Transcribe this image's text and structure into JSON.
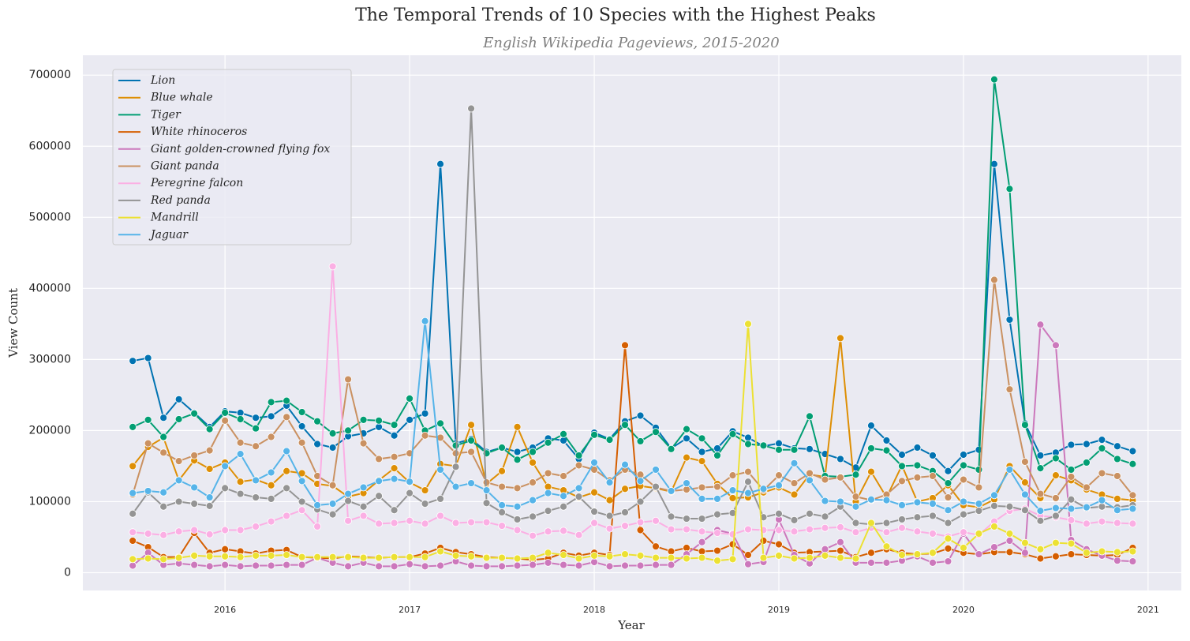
{
  "chart_data": {
    "type": "line",
    "title": "The Temporal Trends of 10 Species with the Highest Peaks",
    "subtitle": "English Wikipedia Pageviews, 2015-2020",
    "x_label": "Year",
    "y_label": "View Count",
    "x": [
      "2015-07",
      "2015-08",
      "2015-09",
      "2015-10",
      "2015-11",
      "2015-12",
      "2016-01",
      "2016-02",
      "2016-03",
      "2016-04",
      "2016-05",
      "2016-06",
      "2016-07",
      "2016-08",
      "2016-09",
      "2016-10",
      "2016-11",
      "2016-12",
      "2017-01",
      "2017-02",
      "2017-03",
      "2017-04",
      "2017-05",
      "2017-06",
      "2017-07",
      "2017-08",
      "2017-09",
      "2017-10",
      "2017-11",
      "2017-12",
      "2018-01",
      "2018-02",
      "2018-03",
      "2018-04",
      "2018-05",
      "2018-06",
      "2018-07",
      "2018-08",
      "2018-09",
      "2018-10",
      "2018-11",
      "2018-12",
      "2019-01",
      "2019-02",
      "2019-03",
      "2019-04",
      "2019-05",
      "2019-06",
      "2019-07",
      "2019-08",
      "2019-09",
      "2019-10",
      "2019-11",
      "2019-12",
      "2020-01",
      "2020-02",
      "2020-03",
      "2020-04",
      "2020-05",
      "2020-06",
      "2020-07",
      "2020-08",
      "2020-09",
      "2020-10",
      "2020-11",
      "2020-12"
    ],
    "xlim": [
      2015.23,
      2021.18
    ],
    "xticks": [
      2016,
      2017,
      2018,
      2019,
      2020,
      2021
    ],
    "ylim": [
      -25000,
      728000
    ],
    "yticks": [
      0,
      100000,
      200000,
      300000,
      400000,
      500000,
      600000,
      700000
    ],
    "grid": true,
    "legend": "upper left",
    "series": [
      {
        "name": "Lion",
        "color": "#0173b2",
        "values": [
          298000,
          302000,
          218000,
          244000,
          225000,
          205000,
          227000,
          225000,
          218000,
          220000,
          235000,
          206000,
          181000,
          176000,
          192000,
          196000,
          205000,
          193000,
          215000,
          224000,
          575000,
          182000,
          188000,
          170000,
          176000,
          170000,
          176000,
          189000,
          186000,
          160000,
          197000,
          188000,
          213000,
          221000,
          204000,
          175000,
          189000,
          170000,
          175000,
          199000,
          190000,
          178000,
          182000,
          175000,
          174000,
          167000,
          160000,
          148000,
          207000,
          186000,
          166000,
          176000,
          165000,
          143000,
          166000,
          173000,
          575000,
          356000,
          210000,
          165000,
          169000,
          180000,
          181000,
          187000,
          178000,
          171000
        ]
      },
      {
        "name": "Blue whale",
        "color": "#de8f05",
        "values": [
          150000,
          177000,
          190000,
          130000,
          158000,
          146000,
          155000,
          128000,
          131000,
          123000,
          143000,
          140000,
          125000,
          122000,
          107000,
          112000,
          130000,
          147000,
          127000,
          116000,
          153000,
          150000,
          208000,
          125000,
          143000,
          205000,
          155000,
          121000,
          116000,
          106000,
          113000,
          102000,
          118000,
          122000,
          119000,
          114000,
          162000,
          157000,
          125000,
          105000,
          106000,
          113000,
          120000,
          110000,
          138000,
          135000,
          330000,
          100000,
          142000,
          106000,
          151000,
          100000,
          105000,
          123000,
          95000,
          92000,
          103000,
          150000,
          127000,
          105000,
          137000,
          130000,
          117000,
          110000,
          104000,
          102000
        ]
      },
      {
        "name": "Tiger",
        "color": "#029e73",
        "values": [
          205000,
          215000,
          191000,
          216000,
          224000,
          202000,
          225000,
          216000,
          203000,
          240000,
          242000,
          226000,
          213000,
          196000,
          200000,
          215000,
          214000,
          208000,
          245000,
          200000,
          210000,
          179000,
          186000,
          168000,
          176000,
          159000,
          170000,
          183000,
          195000,
          165000,
          194000,
          187000,
          208000,
          185000,
          198000,
          174000,
          202000,
          189000,
          165000,
          195000,
          181000,
          179000,
          173000,
          173000,
          220000,
          136000,
          135000,
          138000,
          175000,
          172000,
          150000,
          151000,
          143000,
          126000,
          151000,
          145000,
          694000,
          540000,
          208000,
          147000,
          161000,
          145000,
          155000,
          175000,
          160000,
          153000
        ]
      },
      {
        "name": "White rhinoceros",
        "color": "#d55e00",
        "values": [
          45000,
          36000,
          22000,
          22000,
          56000,
          28000,
          33000,
          30000,
          27000,
          31000,
          32000,
          22000,
          21000,
          20000,
          23000,
          22000,
          21000,
          22000,
          22000,
          27000,
          35000,
          29000,
          26000,
          22000,
          21000,
          20000,
          18000,
          20000,
          28000,
          24000,
          28000,
          25000,
          320000,
          60000,
          37000,
          30000,
          35000,
          30000,
          31000,
          40000,
          25000,
          45000,
          40000,
          28000,
          29000,
          30000,
          31000,
          22000,
          28000,
          33000,
          28000,
          26000,
          27000,
          34000,
          28000,
          26000,
          29000,
          29000,
          26000,
          20000,
          23000,
          26000,
          25000,
          24000,
          25000,
          35000
        ]
      },
      {
        "name": "Giant golden-crowned flying fox",
        "color": "#cc78bc",
        "values": [
          10000,
          28000,
          11000,
          13000,
          11000,
          9000,
          11000,
          9000,
          10000,
          10000,
          11000,
          11000,
          21000,
          14000,
          9000,
          14000,
          9000,
          9000,
          12000,
          9000,
          10000,
          16000,
          10000,
          9000,
          9000,
          10000,
          11000,
          14000,
          11000,
          10000,
          15000,
          9000,
          10000,
          10000,
          11000,
          11000,
          26000,
          43000,
          60000,
          55000,
          12000,
          15000,
          75000,
          25000,
          13000,
          33000,
          43000,
          14000,
          14000,
          14000,
          17000,
          23000,
          14000,
          16000,
          55000,
          26000,
          36000,
          45000,
          28000,
          349000,
          320000,
          46000,
          33000,
          24000,
          17000,
          16000
        ]
      },
      {
        "name": "Giant panda",
        "color": "#ca9161",
        "values": [
          110000,
          182000,
          169000,
          157000,
          165000,
          172000,
          214000,
          183000,
          178000,
          191000,
          219000,
          183000,
          136000,
          123000,
          272000,
          182000,
          160000,
          163000,
          168000,
          193000,
          190000,
          168000,
          170000,
          127000,
          121000,
          119000,
          127000,
          140000,
          136000,
          151000,
          145000,
          130000,
          145000,
          138000,
          120000,
          115000,
          117000,
          120000,
          121000,
          137000,
          142000,
          116000,
          137000,
          126000,
          140000,
          131000,
          134000,
          107000,
          102000,
          110000,
          129000,
          134000,
          136000,
          106000,
          131000,
          120000,
          412000,
          258000,
          156000,
          111000,
          105000,
          135000,
          120000,
          140000,
          136000,
          109000
        ]
      },
      {
        "name": "Peregrine falcon",
        "color": "#fbafe4",
        "values": [
          57000,
          55000,
          53000,
          58000,
          60000,
          54000,
          60000,
          60000,
          65000,
          72000,
          80000,
          88000,
          65000,
          431000,
          73000,
          80000,
          69000,
          70000,
          73000,
          69000,
          80000,
          70000,
          71000,
          71000,
          66000,
          60000,
          52000,
          58000,
          59000,
          53000,
          70000,
          62000,
          66000,
          71000,
          73000,
          61000,
          61000,
          58000,
          56000,
          54000,
          61000,
          60000,
          60000,
          58000,
          61000,
          63000,
          64000,
          57000,
          63000,
          57000,
          63000,
          58000,
          55000,
          51000,
          57000,
          53000,
          72000,
          87000,
          90000,
          80000,
          78000,
          74000,
          69000,
          72000,
          70000,
          69000
        ]
      },
      {
        "name": "Red panda",
        "color": "#949494",
        "values": [
          83000,
          113000,
          93000,
          100000,
          97000,
          94000,
          119000,
          111000,
          106000,
          104000,
          119000,
          100000,
          89000,
          82000,
          101000,
          93000,
          108000,
          88000,
          112000,
          97000,
          104000,
          149000,
          653000,
          98000,
          85000,
          75000,
          79000,
          87000,
          93000,
          107000,
          86000,
          80000,
          85000,
          100000,
          121000,
          79000,
          76000,
          76000,
          82000,
          84000,
          128000,
          78000,
          83000,
          74000,
          83000,
          79000,
          93000,
          70000,
          68000,
          70000,
          75000,
          78000,
          80000,
          70000,
          82000,
          87000,
          94000,
          93000,
          88000,
          73000,
          80000,
          103000,
          91000,
          93000,
          92000,
          95000
        ]
      },
      {
        "name": "Mandrill",
        "color": "#ece133",
        "values": [
          19000,
          20000,
          19000,
          21000,
          24000,
          23000,
          23000,
          22000,
          24000,
          24000,
          25000,
          22000,
          22000,
          22000,
          22000,
          21000,
          21000,
          22000,
          22000,
          22000,
          30000,
          24000,
          23000,
          21000,
          21000,
          20000,
          21000,
          28000,
          25000,
          20000,
          24000,
          23000,
          26000,
          24000,
          21000,
          21000,
          20000,
          21000,
          17000,
          19000,
          350000,
          21000,
          24000,
          20000,
          21000,
          24000,
          21000,
          20000,
          70000,
          37000,
          25000,
          26000,
          28000,
          48000,
          35000,
          55000,
          65000,
          55000,
          42000,
          33000,
          42000,
          41000,
          28000,
          30000,
          29000,
          30000
        ]
      },
      {
        "name": "Jaguar",
        "color": "#56b4e9",
        "values": [
          112000,
          115000,
          113000,
          130000,
          120000,
          106000,
          150000,
          167000,
          130000,
          141000,
          171000,
          129000,
          95000,
          97000,
          111000,
          120000,
          129000,
          132000,
          128000,
          354000,
          145000,
          121000,
          126000,
          116000,
          95000,
          93000,
          102000,
          112000,
          108000,
          119000,
          155000,
          127000,
          152000,
          129000,
          145000,
          115000,
          126000,
          104000,
          104000,
          116000,
          112000,
          118000,
          123000,
          154000,
          130000,
          101000,
          100000,
          93000,
          103000,
          102000,
          95000,
          99000,
          97000,
          88000,
          100000,
          97000,
          109000,
          145000,
          110000,
          87000,
          91000,
          90000,
          92000,
          102000,
          88000,
          90000
        ]
      }
    ]
  }
}
